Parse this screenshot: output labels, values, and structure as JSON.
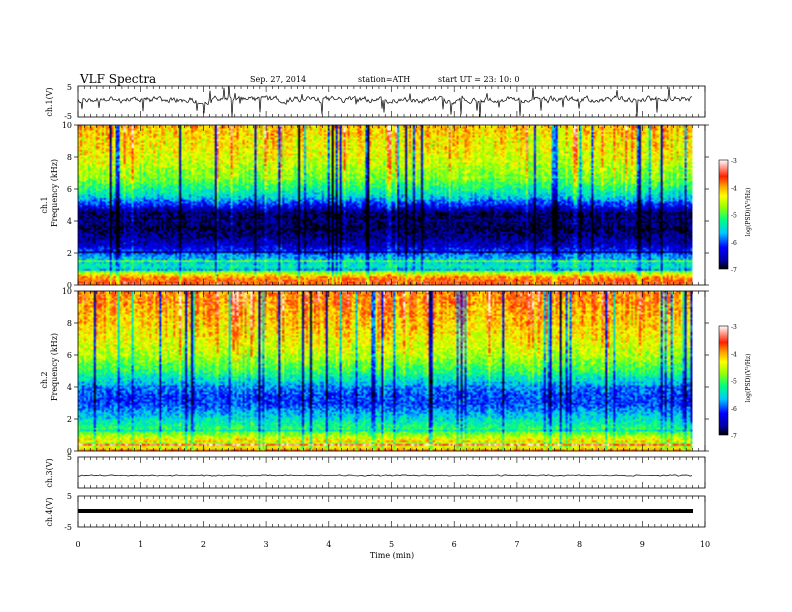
{
  "header": {
    "title": "VLF  Spectra",
    "date": "Sep. 27, 2014",
    "station": "station=ATH",
    "start": "start  UT  =   23: 10: 0"
  },
  "chart_data": [
    {
      "type": "line",
      "id": "ch1-waveform",
      "ylabel": "ch.1(V)",
      "ylim": [
        -5,
        5
      ],
      "yticks": [
        5,
        -5
      ],
      "xlim": [
        0,
        10
      ],
      "description_level_V": 0.6
    },
    {
      "type": "heatmap",
      "id": "ch1-spectrogram",
      "ylabel_line1": "ch.1",
      "ylabel_line2": "Frequency  (kHz)",
      "ylim": [
        0,
        10
      ],
      "yticks": [
        0,
        2,
        4,
        6,
        8,
        10
      ],
      "xlim": [
        0,
        9.8
      ],
      "colorbar": {
        "label": "log(PSD)(V²/Hz)",
        "range": [
          -7,
          -3
        ],
        "ticks": [
          -3,
          -4,
          -5,
          -6,
          -7
        ]
      },
      "psd_profile": [
        {
          "f": 0.0,
          "v": -3.6
        },
        {
          "f": 0.5,
          "v": -3.9
        },
        {
          "f": 1.0,
          "v": -5.3
        },
        {
          "f": 1.8,
          "v": -5.8
        },
        {
          "f": 2.5,
          "v": -6.5
        },
        {
          "f": 3.5,
          "v": -6.9
        },
        {
          "f": 4.5,
          "v": -6.8
        },
        {
          "f": 5.5,
          "v": -5.6
        },
        {
          "f": 6.5,
          "v": -4.9
        },
        {
          "f": 8.0,
          "v": -4.4
        },
        {
          "f": 10.0,
          "v": -4.1
        }
      ]
    },
    {
      "type": "heatmap",
      "id": "ch2-spectrogram",
      "ylabel_line1": "ch.2",
      "ylabel_line2": "Frequency  (kHz)",
      "ylim": [
        0,
        10
      ],
      "yticks": [
        0,
        2,
        4,
        6,
        8,
        10
      ],
      "xlim": [
        0,
        9.8
      ],
      "colorbar": {
        "label": "log(PSD)(V²/Hz)",
        "range": [
          -7,
          -3
        ],
        "ticks": [
          -3,
          -4,
          -5,
          -6,
          -7
        ]
      },
      "psd_profile": [
        {
          "f": 0.0,
          "v": -3.7
        },
        {
          "f": 0.5,
          "v": -4.0
        },
        {
          "f": 1.2,
          "v": -5.0
        },
        {
          "f": 2.0,
          "v": -5.5
        },
        {
          "f": 3.0,
          "v": -6.1
        },
        {
          "f": 4.0,
          "v": -5.9
        },
        {
          "f": 5.0,
          "v": -5.1
        },
        {
          "f": 6.0,
          "v": -4.6
        },
        {
          "f": 7.5,
          "v": -4.2
        },
        {
          "f": 10.0,
          "v": -3.8
        }
      ]
    },
    {
      "type": "line",
      "id": "ch3-waveform",
      "ylabel": "ch.3(V)",
      "ylim": [
        -5,
        5
      ],
      "yticks": [
        5,
        -5
      ],
      "level_V": 0.0
    },
    {
      "type": "line",
      "id": "ch4-waveform",
      "ylabel": "ch.4(V)",
      "ylim": [
        -5,
        5
      ],
      "yticks": [
        5,
        -5
      ],
      "level_V": 1.0
    }
  ],
  "xaxis": {
    "label": "Time  (min)",
    "ticks": [
      0,
      1,
      2,
      3,
      4,
      5,
      6,
      7,
      8,
      9,
      10
    ],
    "xlim": [
      0,
      10
    ]
  },
  "colors": {
    "colormap": [
      "#000000",
      "#00008b",
      "#0000ff",
      "#00bfff",
      "#00ff80",
      "#9aff00",
      "#ffff00",
      "#ffa500",
      "#ff2000",
      "#ffffff"
    ]
  }
}
